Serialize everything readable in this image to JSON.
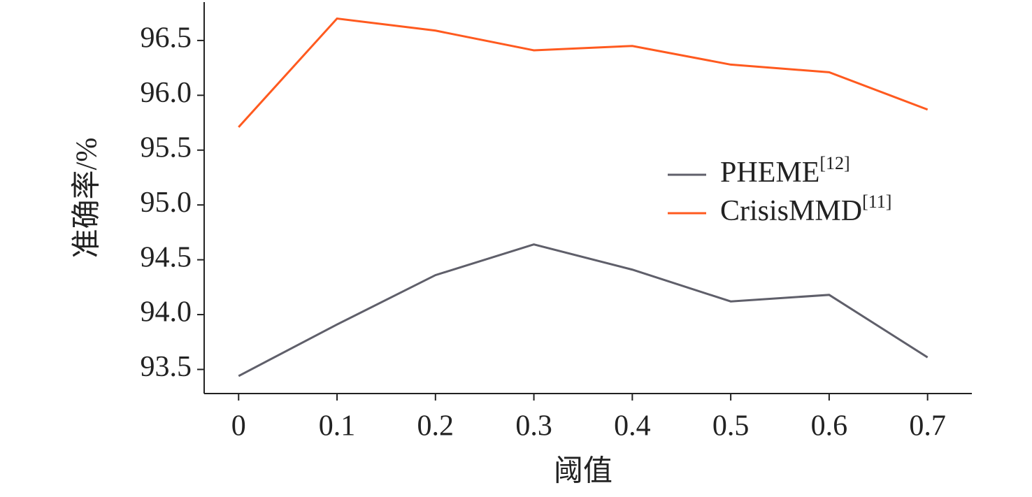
{
  "chart_data": {
    "type": "line",
    "x_label": "阈值",
    "y_label": "准确率/%",
    "x": [
      0,
      0.1,
      0.2,
      0.3,
      0.4,
      0.5,
      0.6,
      0.7
    ],
    "series": [
      {
        "name": "PHEME",
        "citation": "[12]",
        "color": "#5f5f6a",
        "values": [
          93.44,
          93.91,
          94.36,
          94.64,
          94.41,
          94.12,
          94.18,
          93.61
        ]
      },
      {
        "name": "CrisisMMD",
        "citation": "[11]",
        "color": "#ff5a1f",
        "values": [
          95.71,
          96.7,
          96.59,
          96.41,
          96.45,
          96.28,
          96.21,
          95.87
        ]
      }
    ],
    "xlim": [
      -0.035,
      0.745
    ],
    "ylim": [
      93.28,
      96.85
    ],
    "xticks": [
      0,
      0.1,
      0.2,
      0.3,
      0.4,
      0.5,
      0.6,
      0.7
    ],
    "yticks": [
      93.5,
      {
        "value": 94,
        "label": "94.0"
      },
      94.5,
      {
        "value": 95,
        "label": "95.0"
      },
      95.5,
      {
        "value": 96,
        "label": "96.0"
      },
      96.5
    ],
    "grid": false,
    "legend": "right"
  }
}
